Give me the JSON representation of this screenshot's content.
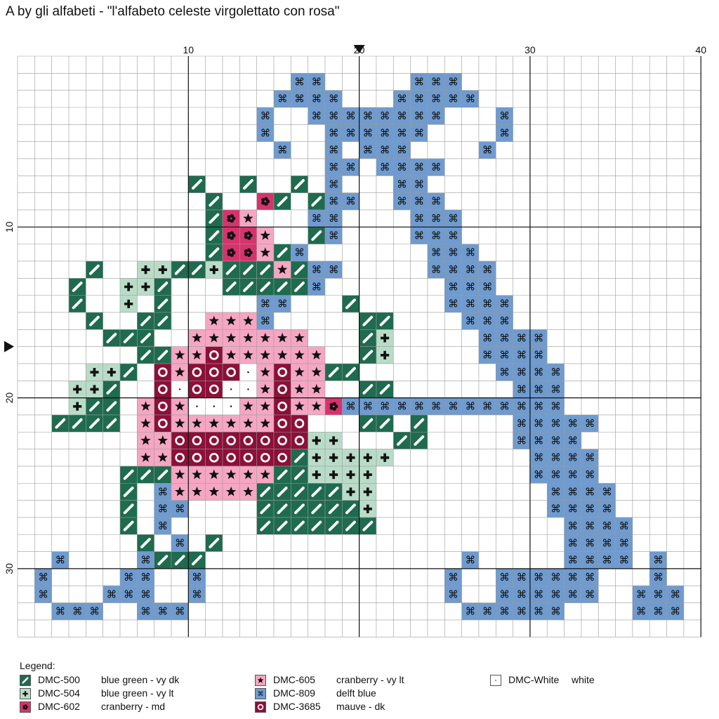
{
  "title": "A by gli alfabeti - \"l'alfabeto celeste virgolettato con rosa\"",
  "axis": {
    "x_labels": [
      "10",
      "20",
      "30",
      "40"
    ],
    "y_labels": [
      "10",
      "20",
      "30"
    ]
  },
  "threads": {
    "G": {
      "code": "DMC-500",
      "name": "blue green - vy dk",
      "color": "#1f6b4f",
      "symbol": "slash"
    },
    "L": {
      "code": "DMC-504",
      "name": "blue green - vy lt",
      "color": "#b9dcc8",
      "symbol": "plus"
    },
    "C": {
      "code": "DMC-602",
      "name": "cranberry - md",
      "color": "#d6336c",
      "symbol": "flower"
    },
    "P": {
      "code": "DMC-605",
      "name": "cranberry - vy lt",
      "color": "#f5a6c2",
      "symbol": "star"
    },
    "B": {
      "code": "DMC-809",
      "name": "delft blue",
      "color": "#6f9bcf",
      "symbol": "cmd"
    },
    "M": {
      "code": "DMC-3685",
      "name": "mauve - dk",
      "color": "#8c1038",
      "symbol": "ring"
    },
    "W": {
      "code": "DMC-White",
      "name": "white",
      "color": "#ffffff",
      "symbol": "dot"
    }
  },
  "legend": {
    "title": "Legend:",
    "items": [
      {
        "code": "DMC-500",
        "desc": "blue green - vy dk",
        "key": "G"
      },
      {
        "code": "DMC-504",
        "desc": "blue green - vy lt",
        "key": "L"
      },
      {
        "code": "DMC-602",
        "desc": "cranberry - md",
        "key": "C"
      },
      {
        "code": "DMC-605",
        "desc": "cranberry - vy lt",
        "key": "P"
      },
      {
        "code": "DMC-809",
        "desc": "delft blue",
        "key": "B"
      },
      {
        "code": "DMC-3685",
        "desc": "mauve - dk",
        "key": "M"
      },
      {
        "code": "DMC-White",
        "desc": "white",
        "key": "W"
      }
    ]
  },
  "pattern": [
    "........................................",
    "................BB.....BBB..............",
    "...............BBBB...BBBBB.............",
    "..............B..BBBBBBBB...B...........",
    "..............B...BBBBBB....B...........",
    "...............B..B.BBB....B............",
    "..................BB.BBBB...............",
    "..........G..G..G.B...BB................",
    "...........G..CG.GBB..BBB...............",
    "...........GCP...BB....BBB..............",
    "...........GCCP..GB....BBB..............",
    "...........GCCPGB.......BBB.............",
    "....G..LLGGLGGGPGBB.....BBBB............",
    "...G..LLG...GGGGGB.......BBB............",
    "...G..L.G.....BB...G.....BBBB...........",
    "....G..GG..PPPB.....GG....BBB...........",
    ".....GGG..PPPPPPP...GL.....BBBB.........",
    ".......GGPPMPPPPPP..GL.....BBBB.........",
    "....LLG.MPMMMWPMPPGG........BBBB........",
    "...LLG..MWMMWWPMPP..GG.......BBB........",
    "...LGG.PMPWWWPPMPPCBBBBBBBBBBBBB........",
    "..GGGG.PMPPPPPPMM...GG.G.....BBBBB......",
    ".......PPMMMMMMMMLL...GG.....BBBB.......",
    ".......PPMMMMMMMGLLLLL........BBBB......",
    "......GGGPPPPPPGGLLLL.........BBBB......",
    "......G.BPPPPPGGGGGLL..........BBBB.....",
    "......G.BB....GGGGGGL..........BBBB.....",
    "......G.B.....GGGGGGG...........BBBB....",
    ".......G.B.G....................BBBB....",
    "..B....BGGG...............B.....BBBB.B..",
    ".B....BB..B..............B..BBBBBB...B..",
    ".B...BBB..B..............B..BBBBBB..BBB.",
    "..BBB..BBB................BBBBBB....BBB.",
    "........................................"
  ]
}
